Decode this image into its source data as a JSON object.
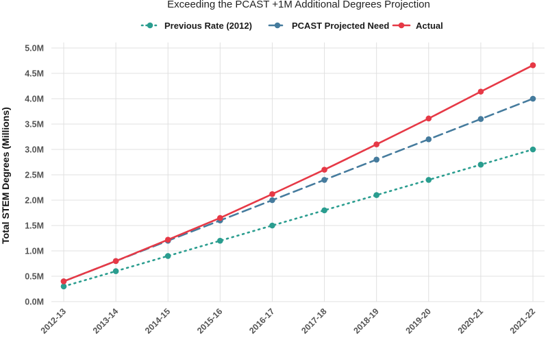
{
  "chart_data": {
    "type": "line",
    "title": "Exceeding the PCAST +1M Additional Degrees Projection",
    "xlabel": "",
    "ylabel": "Total STEM Degrees (Millions)",
    "categories": [
      "2012-13",
      "2013-14",
      "2014-15",
      "2015-16",
      "2016-17",
      "2017-18",
      "2018-19",
      "2019-20",
      "2020-21",
      "2021-22"
    ],
    "yticks": [
      0,
      0.5,
      1.0,
      1.5,
      2.0,
      2.5,
      3.0,
      3.5,
      4.0,
      4.5,
      5.0
    ],
    "ytick_labels": [
      "0.0M",
      "0.5M",
      "1.0M",
      "1.5M",
      "2.0M",
      "2.5M",
      "3.0M",
      "3.5M",
      "4.0M",
      "4.5M",
      "5.0M"
    ],
    "ylim": [
      0,
      5.0
    ],
    "legend_position": "top",
    "series": [
      {
        "name": "Previous Rate (2012)",
        "style": "dotted",
        "color": "#2a9d8f",
        "values": [
          0.3,
          0.6,
          0.9,
          1.2,
          1.5,
          1.8,
          2.1,
          2.4,
          2.7,
          3.0
        ]
      },
      {
        "name": "PCAST Projected Need",
        "style": "dashed",
        "color": "#457b9d",
        "values": [
          0.4,
          0.8,
          1.2,
          1.6,
          2.0,
          2.4,
          2.8,
          3.2,
          3.6,
          4.0
        ]
      },
      {
        "name": "Actual",
        "style": "solid",
        "color": "#e63946",
        "values": [
          0.4,
          0.8,
          1.22,
          1.65,
          2.12,
          2.6,
          3.1,
          3.61,
          4.14,
          4.66
        ]
      }
    ]
  }
}
